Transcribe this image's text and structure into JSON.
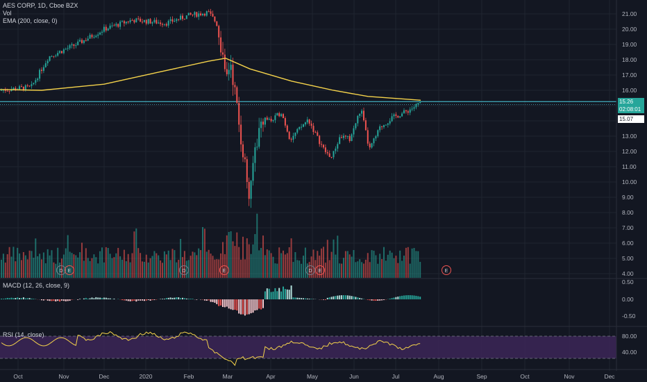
{
  "legend": {
    "main_title": "AES CORP, 1D, Cboe BZX",
    "vol": "Vol",
    "ema": "EMA (200, close, 0)",
    "macd": "MACD (12, 26, close, 9)",
    "rsi": "RSI (14, close)"
  },
  "price_axis": [
    "21.00",
    "20.00",
    "19.00",
    "18.00",
    "17.00",
    "16.00",
    "15.00",
    "14.00",
    "13.00",
    "12.00",
    "11.00",
    "10.00",
    "9.00",
    "8.00",
    "7.00",
    "6.00",
    "5.00",
    "4.00"
  ],
  "macd_axis": [
    "0.50",
    "0.00",
    "-0.50"
  ],
  "rsi_axis": [
    "80.00",
    "40.00"
  ],
  "time_axis": [
    "Oct",
    "Nov",
    "Dec",
    "2020",
    "Feb",
    "Mar",
    "Apr",
    "May",
    "Jun",
    "Jul",
    "Aug",
    "Sep",
    "Oct",
    "Nov",
    "Dec"
  ],
  "badges": {
    "last_price": "15.26",
    "countdown": "02:08:01",
    "line_price": "15.07"
  },
  "event_markers": [
    "D",
    "E",
    "D",
    "E",
    "D",
    "E",
    "E"
  ],
  "colors": {
    "background": "#131722",
    "up": "#26a69a",
    "down": "#ef5350",
    "ema": "#f5d34b",
    "rsi_line": "#f5d34b",
    "rsi_band": "#3c2657",
    "hline": "#4dd0e1",
    "last_badge": "#26a69a"
  },
  "chart_data": {
    "type": "candlestick",
    "title": "AES CORP, 1D, Cboe BZX",
    "x_months": [
      "Oct",
      "Nov",
      "Dec",
      "2020",
      "Feb",
      "Mar",
      "Apr",
      "May",
      "Jun",
      "Jul"
    ],
    "close_approx": [
      16.0,
      16.1,
      16.3,
      17.0,
      18.0,
      18.9,
      19.5,
      20.1,
      20.4,
      20.6,
      20.8,
      21.0,
      18.0,
      14.5,
      11.5,
      13.5,
      14.2,
      13.8,
      13.2,
      12.0,
      13.5,
      13.4,
      14.2,
      15.0,
      15.26
    ],
    "ohlc_keypoints": [
      {
        "date": "Oct 2019",
        "value": 16.0
      },
      {
        "date": "Dec 2019",
        "value": 18.9
      },
      {
        "date": "Feb 2020",
        "value": 21.1
      },
      {
        "date": "Mar 2020",
        "value": 8.2
      },
      {
        "date": "Apr 2020",
        "value": 14.7
      },
      {
        "date": "May 2020",
        "value": 11.1
      },
      {
        "date": "Jun 2020",
        "value": 14.8
      },
      {
        "date": "Jul 2020",
        "value": 15.26
      }
    ],
    "ema200": {
      "name": "EMA (200, close, 0)",
      "values": [
        16.0,
        16.1,
        16.4,
        16.8,
        17.3,
        17.8,
        18.1,
        17.6,
        16.5,
        15.8,
        15.5,
        15.3
      ]
    },
    "last_price": 15.26,
    "horizontal_line": 15.07,
    "ylim": [
      4.0,
      21.5
    ],
    "macd": {
      "name": "MACD (12, 26, close, 9)",
      "ylim": [
        -0.8,
        0.6
      ]
    },
    "rsi": {
      "name": "RSI (14, close)",
      "band": [
        30,
        70
      ],
      "ylim": [
        20,
        90
      ]
    },
    "grid": true
  }
}
